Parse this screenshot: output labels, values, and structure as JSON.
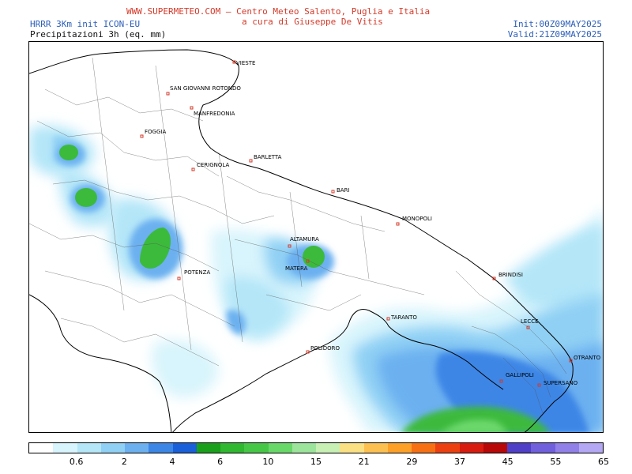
{
  "header": {
    "site_line": "WWW.SUPERMETEO.COM – Centro Meteo Salento, Puglia e Italia",
    "author_line": "a cura di Giuseppe De Vitis",
    "model": "HRRR 3Km init ICON-EU",
    "variable": "Precipitazioni 3h (eq. mm)",
    "init": "Init:00Z09MAY2025",
    "valid": "Valid:21Z09MAY2025"
  },
  "colors": {
    "title_red": "#d43a2a",
    "meta_blue": "#2c5fb8",
    "sea_blue": "#3f86e8",
    "rain_green": "#3cba3c"
  },
  "cities": [
    {
      "name": "VIESTE"
    },
    {
      "name": "SAN GIOVANNI ROTONDO"
    },
    {
      "name": "MANFREDONIA"
    },
    {
      "name": "FOGGIA"
    },
    {
      "name": "CERIGNOLA"
    },
    {
      "name": "BARLETTA"
    },
    {
      "name": "BARI"
    },
    {
      "name": "MONOPOLI"
    },
    {
      "name": "ALTAMURA"
    },
    {
      "name": "MATERA"
    },
    {
      "name": "POTENZA"
    },
    {
      "name": "BRINDISI"
    },
    {
      "name": "TARANTO"
    },
    {
      "name": "LECCE"
    },
    {
      "name": "POLIDORO"
    },
    {
      "name": "OTRANTO"
    },
    {
      "name": "GALLIPOLI"
    },
    {
      "name": "SUPERSANO"
    }
  ],
  "legend": {
    "colors": [
      "#ffffff",
      "#d8f4fc",
      "#b4e6f8",
      "#90d0f4",
      "#6cb0f0",
      "#3c86e6",
      "#1a60d8",
      "#1aa01a",
      "#30b830",
      "#46c846",
      "#68d868",
      "#9ce49c",
      "#c8f0b4",
      "#fae082",
      "#fcc050",
      "#fca028",
      "#f87014",
      "#ec4010",
      "#d81c10",
      "#b80808",
      "#5040c8",
      "#7060dc",
      "#9080e8",
      "#b4a8f4"
    ],
    "ticks": [
      "0.6",
      "2",
      "4",
      "6",
      "10",
      "15",
      "21",
      "29",
      "37",
      "45",
      "55",
      "65"
    ]
  }
}
